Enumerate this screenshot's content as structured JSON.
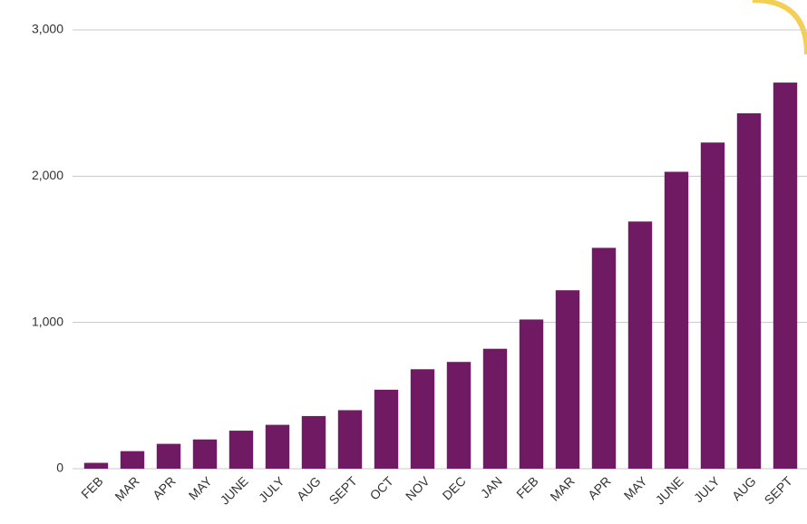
{
  "chart_data": {
    "type": "bar",
    "categories": [
      "FEB",
      "MAR",
      "APR",
      "MAY",
      "JUNE",
      "JULY",
      "AUG",
      "SEPT",
      "OCT",
      "NOV",
      "DEC",
      "JAN",
      "FEB",
      "MAR",
      "APR",
      "MAY",
      "JUNE",
      "JULY",
      "AUG",
      "SEPT"
    ],
    "values": [
      40,
      120,
      170,
      200,
      260,
      300,
      360,
      400,
      540,
      680,
      730,
      820,
      1020,
      1220,
      1510,
      1690,
      2030,
      2230,
      2430,
      2640
    ],
    "color": "#701a63",
    "ylim": [
      0,
      3000
    ],
    "yticks": [
      0,
      {
        "value": 1000,
        "label": "1,000"
      },
      {
        "value": 2000,
        "label": "2,000"
      },
      {
        "value": 3000,
        "label": "3,000"
      }
    ],
    "grid": true
  }
}
